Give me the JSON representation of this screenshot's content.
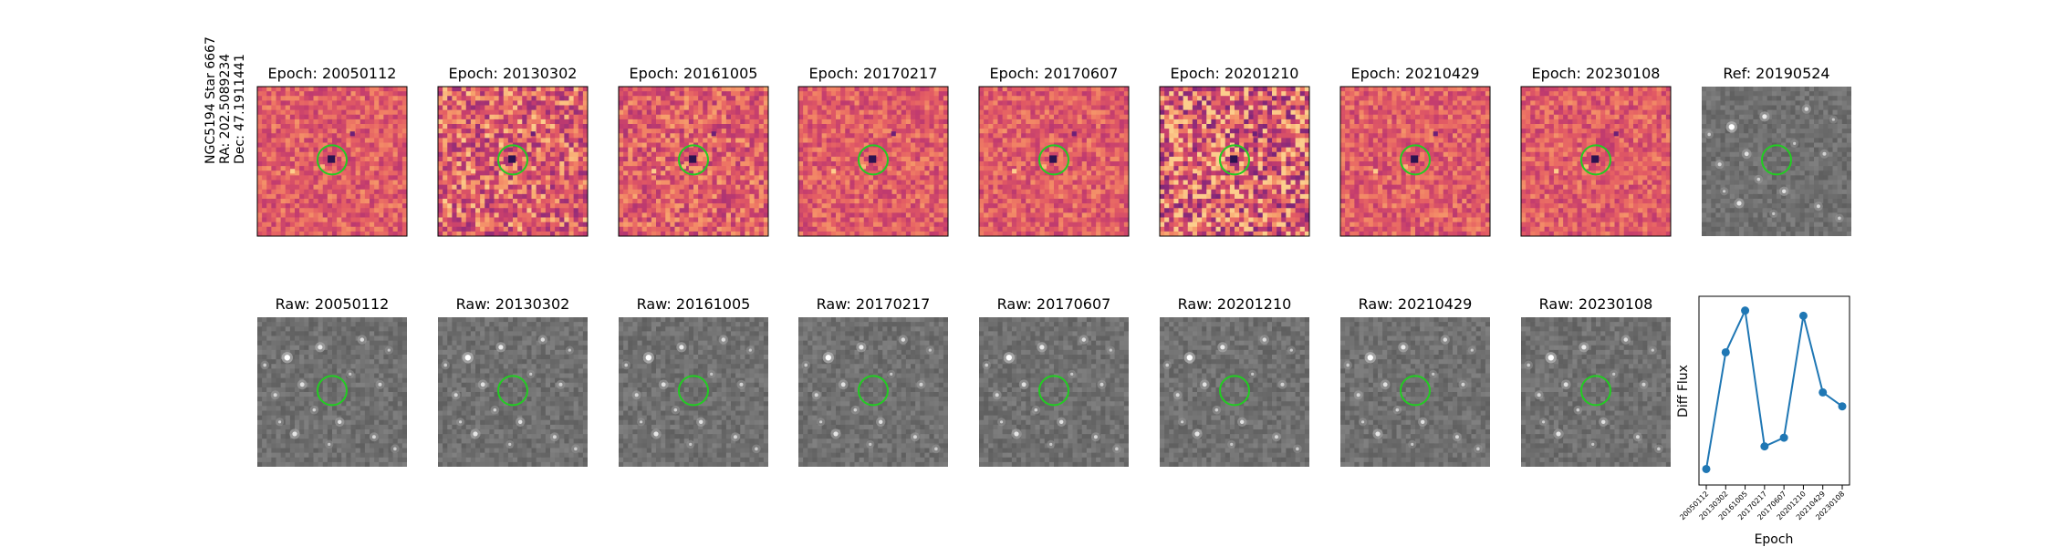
{
  "side_label": [
    "NGC5194 Star 6667",
    "RA: 202.5089234",
    "Dec: 47.1911441"
  ],
  "diff_titles": [
    "Epoch: 20050112",
    "Epoch: 20130302",
    "Epoch: 20161005",
    "Epoch: 20170217",
    "Epoch: 20170607",
    "Epoch: 20201210",
    "Epoch: 20210429",
    "Epoch: 20230108"
  ],
  "ref_title": "Ref: 20190524",
  "raw_titles": [
    "Raw: 20050112",
    "Raw: 20130302",
    "Raw: 20161005",
    "Raw: 20170217",
    "Raw: 20170607",
    "Raw: 20201210",
    "Raw: 20210429",
    "Raw: 20230108"
  ],
  "colors": {
    "circle": "#22cc22",
    "series": "#1f77b4",
    "frame": "#000000"
  },
  "chart_data": {
    "type": "line",
    "xlabel": "Epoch",
    "ylabel": "Diff Flux",
    "categories": [
      "20050112",
      "20130302",
      "20161005",
      "20170217",
      "20170607",
      "20201210",
      "20210429",
      "20230108"
    ],
    "values": [
      0.05,
      0.72,
      0.96,
      0.18,
      0.23,
      0.93,
      0.49,
      0.41
    ],
    "yticks_visible": false,
    "grid": false,
    "legend": "none"
  }
}
